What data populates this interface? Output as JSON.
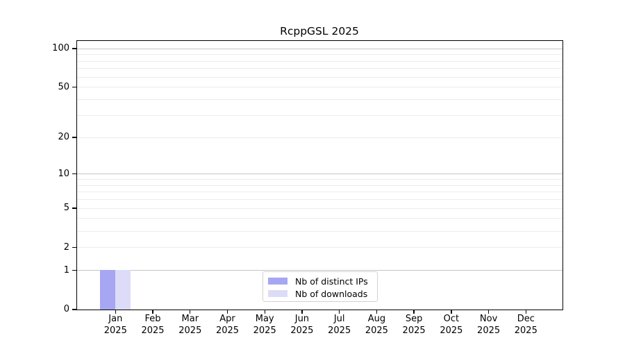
{
  "chart_data": {
    "type": "bar",
    "title": "RcppGSL 2025",
    "categories": [
      {
        "month": "Jan",
        "year": "2025"
      },
      {
        "month": "Feb",
        "year": "2025"
      },
      {
        "month": "Mar",
        "year": "2025"
      },
      {
        "month": "Apr",
        "year": "2025"
      },
      {
        "month": "May",
        "year": "2025"
      },
      {
        "month": "Jun",
        "year": "2025"
      },
      {
        "month": "Jul",
        "year": "2025"
      },
      {
        "month": "Aug",
        "year": "2025"
      },
      {
        "month": "Sep",
        "year": "2025"
      },
      {
        "month": "Oct",
        "year": "2025"
      },
      {
        "month": "Nov",
        "year": "2025"
      },
      {
        "month": "Dec",
        "year": "2025"
      }
    ],
    "series": [
      {
        "name": "Nb of distinct IPs",
        "color": "#a6a6f2",
        "values": [
          1,
          0,
          0,
          0,
          0,
          0,
          0,
          0,
          0,
          0,
          0,
          0
        ]
      },
      {
        "name": "Nb of downloads",
        "color": "#dcdcf8",
        "values": [
          1,
          0,
          0,
          0,
          0,
          0,
          0,
          0,
          0,
          0,
          0,
          0
        ]
      }
    ],
    "yscale": "log1p",
    "ylim": [
      0,
      100
    ],
    "yticks": [
      0,
      1,
      2,
      5,
      10,
      20,
      50,
      100
    ],
    "grid_major_lines": [
      1,
      10,
      100
    ],
    "grid_minor_lines": [
      2,
      3,
      4,
      5,
      6,
      7,
      8,
      9,
      20,
      30,
      40,
      50,
      60,
      70,
      80,
      90
    ],
    "grid": true,
    "legend": {
      "location": "lower center",
      "items": [
        "Nb of distinct IPs",
        "Nb of downloads"
      ]
    },
    "colors": {
      "grid_major": "#c6c6c6",
      "grid_minor": "#ececec",
      "axis": "#000000",
      "text": "#000000",
      "background": "#ffffff",
      "legend_border": "#d2d2d2"
    }
  }
}
